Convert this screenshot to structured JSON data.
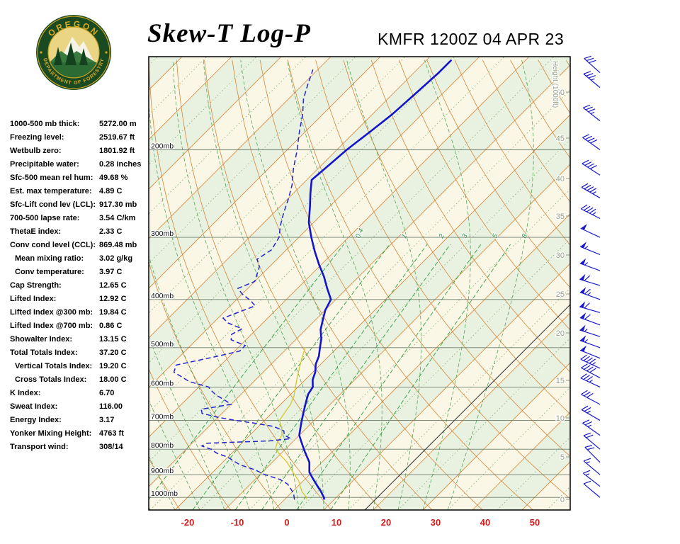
{
  "header": {
    "title": "Skew-T Log-P",
    "station": "KMFR 1200Z 04 APR 23",
    "logo": {
      "top": "OREGON",
      "bottom": "DEPARTMENT OF FORESTRY"
    }
  },
  "indices": [
    {
      "label": "1000-500 mb thick:",
      "value": "5272.00 m",
      "indent": false
    },
    {
      "label": "Freezing level:",
      "value": "2519.67 ft",
      "indent": false
    },
    {
      "label": "Wetbulb zero:",
      "value": "1801.92 ft",
      "indent": false
    },
    {
      "label": "Precipitable water:",
      "value": "0.28 inches",
      "indent": false
    },
    {
      "label": "Sfc-500 mean rel hum:",
      "value": "49.68 %",
      "indent": false
    },
    {
      "label": "Est. max temperature:",
      "value": "4.89 C",
      "indent": false
    },
    {
      "label": "Sfc-Lift cond lev (LCL):",
      "value": "917.30 mb",
      "indent": false
    },
    {
      "label": "700-500 lapse rate:",
      "value": "3.54 C/km",
      "indent": false
    },
    {
      "label": "ThetaE index:",
      "value": "2.33 C",
      "indent": false
    },
    {
      "label": "Conv cond level (CCL):",
      "value": "869.48 mb",
      "indent": false
    },
    {
      "label": "Mean mixing ratio:",
      "value": "3.02 g/kg",
      "indent": true
    },
    {
      "label": "Conv temperature:",
      "value": "3.97 C",
      "indent": true
    },
    {
      "label": "Cap Strength:",
      "value": "12.65 C",
      "indent": false
    },
    {
      "label": "Lifted Index:",
      "value": "12.92 C",
      "indent": false
    },
    {
      "label": "Lifted Index @300 mb:",
      "value": "19.84 C",
      "indent": false
    },
    {
      "label": "Lifted Index @700 mb:",
      "value": "0.86 C",
      "indent": false
    },
    {
      "label": "Showalter Index:",
      "value": "13.15 C",
      "indent": false
    },
    {
      "label": "Total Totals Index:",
      "value": "37.20 C",
      "indent": false
    },
    {
      "label": "Vertical Totals Index:",
      "value": "19.20 C",
      "indent": true
    },
    {
      "label": "Cross Totals Index:",
      "value": "18.00 C",
      "indent": true
    },
    {
      "label": "K Index:",
      "value": "6.70",
      "indent": false
    },
    {
      "label": "Sweat Index:",
      "value": "116.00",
      "indent": false
    },
    {
      "label": "Energy Index:",
      "value": "3.17",
      "indent": false
    },
    {
      "label": "Yonker Mixing Height:",
      "value": "4763 ft",
      "indent": false
    },
    {
      "label": "Transport wind:",
      "value": "308/14",
      "indent": false
    }
  ],
  "chart_data": {
    "type": "line",
    "subtype": "skew-t-log-p",
    "title": "Skew-T Log-P",
    "station": "KMFR 1200Z 04 APR 23",
    "pressure_range_mb": [
      130,
      1060
    ],
    "pressure_levels": [
      200,
      300,
      400,
      500,
      600,
      700,
      800,
      900,
      1000
    ],
    "temp_axis": {
      "ticks": [
        -20,
        -10,
        0,
        10,
        20,
        30,
        40,
        50
      ],
      "unit": "C"
    },
    "height_scale": {
      "label": "Height (1000ft)",
      "ticks": [
        50,
        45,
        40,
        35,
        30,
        25,
        20,
        15,
        10,
        5,
        0
      ]
    },
    "mixing_ratio_lines": [
      0.4,
      1,
      2,
      3,
      5,
      8
    ],
    "sounding": {
      "temperature_p_c": [
        [
          1010,
          8
        ],
        [
          1000,
          7.5
        ],
        [
          985,
          6.5
        ],
        [
          970,
          5.5
        ],
        [
          950,
          4
        ],
        [
          930,
          2.5
        ],
        [
          910,
          1
        ],
        [
          890,
          -0.5
        ],
        [
          870,
          -1.5
        ],
        [
          850,
          -2.5
        ],
        [
          830,
          -4
        ],
        [
          810,
          -5.5
        ],
        [
          790,
          -7
        ],
        [
          770,
          -8.5
        ],
        [
          750,
          -10
        ],
        [
          730,
          -11
        ],
        [
          710,
          -12
        ],
        [
          700,
          -12.5
        ],
        [
          680,
          -13.5
        ],
        [
          660,
          -14.5
        ],
        [
          640,
          -15.5
        ],
        [
          620,
          -16.5
        ],
        [
          600,
          -17
        ],
        [
          580,
          -18.5
        ],
        [
          560,
          -19.5
        ],
        [
          540,
          -21
        ],
        [
          520,
          -22
        ],
        [
          500,
          -23.5
        ],
        [
          480,
          -25
        ],
        [
          460,
          -27
        ],
        [
          440,
          -28.5
        ],
        [
          420,
          -30
        ],
        [
          400,
          -31
        ],
        [
          380,
          -34
        ],
        [
          360,
          -37
        ],
        [
          340,
          -40.5
        ],
        [
          320,
          -44
        ],
        [
          300,
          -47.5
        ],
        [
          280,
          -51
        ],
        [
          260,
          -54
        ],
        [
          245,
          -56.5
        ],
        [
          230,
          -59
        ],
        [
          215,
          -58.5
        ],
        [
          200,
          -58
        ],
        [
          185,
          -57
        ],
        [
          170,
          -56
        ],
        [
          155,
          -55.5
        ],
        [
          140,
          -55
        ],
        [
          132,
          -55
        ]
      ],
      "dewpoint_p_c": [
        [
          1010,
          2
        ],
        [
          1000,
          1.5
        ],
        [
          980,
          0.5
        ],
        [
          960,
          -1
        ],
        [
          940,
          -2.5
        ],
        [
          920,
          -5
        ],
        [
          900,
          -9
        ],
        [
          880,
          -12
        ],
        [
          860,
          -16
        ],
        [
          845,
          -18
        ],
        [
          830,
          -20
        ],
        [
          815,
          -23
        ],
        [
          800,
          -25
        ],
        [
          788,
          -27.5
        ],
        [
          778,
          -27
        ],
        [
          770,
          -15
        ],
        [
          762,
          -11
        ],
        [
          750,
          -13
        ],
        [
          735,
          -14
        ],
        [
          720,
          -17
        ],
        [
          708,
          -22
        ],
        [
          700,
          -26
        ],
        [
          690,
          -30
        ],
        [
          678,
          -34
        ],
        [
          665,
          -35
        ],
        [
          650,
          -30
        ],
        [
          638,
          -32
        ],
        [
          622,
          -35
        ],
        [
          608,
          -37
        ],
        [
          600,
          -38
        ],
        [
          585,
          -43
        ],
        [
          560,
          -48
        ],
        [
          542,
          -49
        ],
        [
          522,
          -43
        ],
        [
          508,
          -39
        ],
        [
          495,
          -39
        ],
        [
          482,
          -43
        ],
        [
          470,
          -44
        ],
        [
          458,
          -43
        ],
        [
          446,
          -47
        ],
        [
          436,
          -49
        ],
        [
          424,
          -47
        ],
        [
          412,
          -45
        ],
        [
          402,
          -47
        ],
        [
          390,
          -50
        ],
        [
          380,
          -52
        ],
        [
          368,
          -50
        ],
        [
          356,
          -51
        ],
        [
          344,
          -52
        ],
        [
          332,
          -54
        ],
        [
          318,
          -53
        ],
        [
          300,
          -54
        ],
        [
          285,
          -56
        ],
        [
          268,
          -58
        ],
        [
          250,
          -60
        ],
        [
          235,
          -62
        ],
        [
          218,
          -65
        ],
        [
          200,
          -68
        ],
        [
          185,
          -71
        ],
        [
          170,
          -74
        ],
        [
          158,
          -77
        ],
        [
          148,
          -79
        ],
        [
          138,
          -81
        ]
      ],
      "wetbulb_p_c": [
        [
          1010,
          4.5
        ],
        [
          1000,
          4
        ],
        [
          975,
          2
        ],
        [
          950,
          0.5
        ],
        [
          925,
          -1
        ],
        [
          900,
          -3
        ],
        [
          875,
          -5
        ],
        [
          850,
          -7
        ],
        [
          825,
          -9.5
        ],
        [
          800,
          -12
        ],
        [
          775,
          -13
        ],
        [
          750,
          -13.5
        ],
        [
          725,
          -15
        ],
        [
          700,
          -17
        ],
        [
          675,
          -17.5
        ],
        [
          650,
          -18
        ],
        [
          625,
          -19
        ],
        [
          600,
          -20.5
        ],
        [
          575,
          -22
        ],
        [
          550,
          -23.5
        ],
        [
          525,
          -25
        ],
        [
          500,
          -26.5
        ]
      ],
      "winds_p_dir_spd": [
        [
          1000,
          310,
          10
        ],
        [
          950,
          308,
          14
        ],
        [
          900,
          310,
          15
        ],
        [
          850,
          315,
          20
        ],
        [
          800,
          310,
          20
        ],
        [
          750,
          305,
          25
        ],
        [
          700,
          300,
          25
        ],
        [
          650,
          298,
          30
        ],
        [
          600,
          295,
          35
        ],
        [
          575,
          298,
          40
        ],
        [
          550,
          295,
          45
        ],
        [
          525,
          292,
          50
        ],
        [
          500,
          290,
          55
        ],
        [
          475,
          288,
          55
        ],
        [
          450,
          290,
          60
        ],
        [
          425,
          286,
          60
        ],
        [
          400,
          290,
          65
        ],
        [
          375,
          287,
          60
        ],
        [
          350,
          290,
          55
        ],
        [
          325,
          292,
          55
        ],
        [
          300,
          295,
          50
        ],
        [
          275,
          297,
          45
        ],
        [
          250,
          300,
          45
        ],
        [
          225,
          303,
          40
        ],
        [
          200,
          305,
          40
        ],
        [
          175,
          308,
          35
        ],
        [
          150,
          310,
          35
        ],
        [
          140,
          312,
          30
        ]
      ]
    },
    "colors": {
      "band_green": "#e9f2e1",
      "band_cream": "#faf7e6",
      "isotherm": "#d4873a",
      "isotherm_5c": "#7fae6e",
      "dry_adiabat": "#d4873a",
      "moist_adiabat": "#5aa35a",
      "mixing": "#2f9e44",
      "pressure_line": "#6e7f6e",
      "temperature": "#1414cc",
      "dewpoint": "#2424cc",
      "wetbulb": "#d6c832",
      "barb": "#1a1acc",
      "temp_label": "#cc1f1f",
      "height_label": "#97a183",
      "reference_line": "#3a3a3a",
      "frame": "#000000"
    }
  }
}
